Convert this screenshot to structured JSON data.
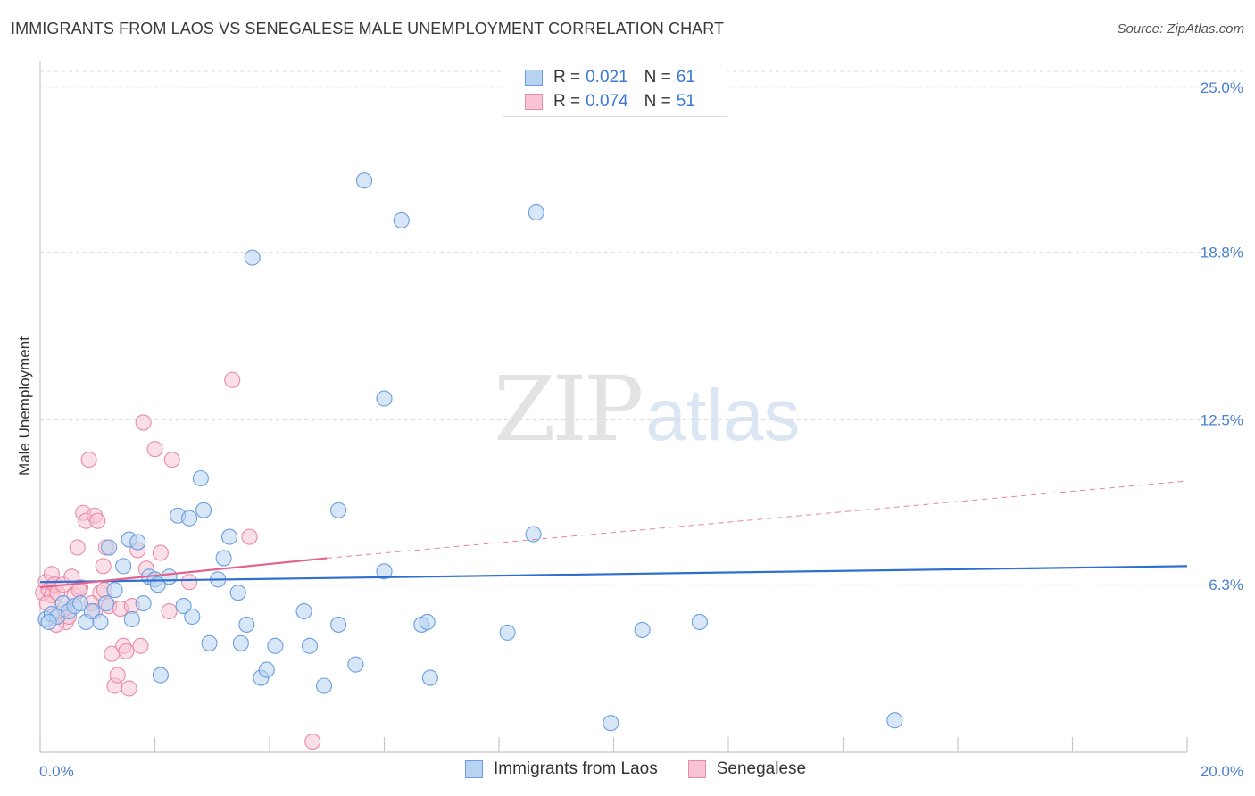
{
  "title": "IMMIGRANTS FROM LAOS VS SENEGALESE MALE UNEMPLOYMENT CORRELATION CHART",
  "source": "Source: ZipAtlas.com",
  "watermark": {
    "zip": "ZIP",
    "atlas": "atlas"
  },
  "legend": {
    "rows": [
      {
        "r_label": "R =",
        "r_value": "0.021",
        "n_label": "N =",
        "n_value": "61"
      },
      {
        "r_label": "R =",
        "r_value": "0.074",
        "n_label": "N =",
        "n_value": "51"
      }
    ]
  },
  "bottom_legend": [
    "Immigrants from Laos",
    "Senegalese"
  ],
  "colors": {
    "blue_fill": "#b8d3f2",
    "blue_stroke": "#6a9ee0",
    "blue_line": "#2f6fcf",
    "pink_fill": "#f8c4d4",
    "pink_stroke": "#e98aa8",
    "pink_line": "#e2648e",
    "tick_text": "#4a7fcf",
    "grid": "#dddddd"
  },
  "chart_data": {
    "type": "scatter",
    "title": "IMMIGRANTS FROM LAOS VS SENEGALESE MALE UNEMPLOYMENT CORRELATION CHART",
    "xlabel": "",
    "ylabel": "Male Unemployment",
    "xlim": [
      0,
      20
    ],
    "ylim": [
      0,
      25.6
    ],
    "x_tick_labels": [
      "0.0%",
      "20.0%"
    ],
    "y_ticks": [
      6.3,
      12.5,
      18.8,
      25.0
    ],
    "y_tick_labels": [
      "6.3%",
      "12.5%",
      "18.8%",
      "25.0%"
    ],
    "grid": true,
    "series": [
      {
        "name": "Immigrants from Laos",
        "r": 0.021,
        "n": 61,
        "trend": {
          "x": [
            0,
            20
          ],
          "y": [
            6.4,
            7.0
          ],
          "style": "solid"
        },
        "points": [
          [
            0.1,
            5.0
          ],
          [
            0.2,
            5.2
          ],
          [
            0.3,
            5.1
          ],
          [
            0.4,
            5.6
          ],
          [
            0.5,
            5.3
          ],
          [
            0.6,
            5.5
          ],
          [
            0.7,
            5.6
          ],
          [
            0.8,
            4.9
          ],
          [
            0.9,
            5.3
          ],
          [
            1.05,
            4.9
          ],
          [
            1.15,
            5.6
          ],
          [
            1.2,
            7.7
          ],
          [
            1.3,
            6.1
          ],
          [
            1.45,
            7.0
          ],
          [
            1.55,
            8.0
          ],
          [
            1.6,
            5.0
          ],
          [
            1.7,
            7.9
          ],
          [
            1.8,
            5.6
          ],
          [
            1.9,
            6.6
          ],
          [
            2.0,
            6.5
          ],
          [
            2.05,
            6.3
          ],
          [
            2.1,
            2.9
          ],
          [
            2.25,
            6.6
          ],
          [
            2.4,
            8.9
          ],
          [
            2.5,
            5.5
          ],
          [
            2.6,
            8.8
          ],
          [
            2.65,
            5.1
          ],
          [
            2.8,
            10.3
          ],
          [
            2.85,
            9.1
          ],
          [
            2.95,
            4.1
          ],
          [
            3.1,
            6.5
          ],
          [
            3.2,
            7.3
          ],
          [
            3.3,
            8.1
          ],
          [
            3.45,
            6.0
          ],
          [
            3.5,
            4.1
          ],
          [
            3.6,
            4.8
          ],
          [
            3.7,
            18.6
          ],
          [
            3.85,
            2.8
          ],
          [
            3.95,
            3.1
          ],
          [
            4.1,
            4.0
          ],
          [
            4.6,
            5.3
          ],
          [
            4.7,
            4.0
          ],
          [
            4.95,
            2.5
          ],
          [
            5.2,
            4.8
          ],
          [
            5.2,
            9.1
          ],
          [
            5.5,
            3.3
          ],
          [
            5.65,
            21.5
          ],
          [
            6.0,
            6.8
          ],
          [
            6.0,
            13.3
          ],
          [
            6.3,
            20.0
          ],
          [
            6.65,
            4.8
          ],
          [
            6.75,
            4.9
          ],
          [
            6.8,
            2.8
          ],
          [
            8.15,
            4.5
          ],
          [
            8.6,
            8.2
          ],
          [
            8.65,
            20.3
          ],
          [
            9.95,
            1.1
          ],
          [
            10.5,
            4.6
          ],
          [
            11.5,
            4.9
          ],
          [
            14.9,
            1.2
          ],
          [
            0.15,
            4.9
          ]
        ]
      },
      {
        "name": "Senegalese",
        "r": 0.074,
        "n": 51,
        "trend": {
          "x": [
            0,
            5.0
          ],
          "y": [
            6.2,
            7.3
          ],
          "style": "solid",
          "dashed_extension": {
            "x": [
              5.0,
              20
            ],
            "y": [
              7.3,
              10.2
            ]
          }
        },
        "points": [
          [
            0.05,
            6.0
          ],
          [
            0.1,
            6.4
          ],
          [
            0.15,
            6.1
          ],
          [
            0.2,
            6.7
          ],
          [
            0.2,
            5.9
          ],
          [
            0.25,
            6.3
          ],
          [
            0.3,
            6.0
          ],
          [
            0.35,
            5.2
          ],
          [
            0.4,
            6.3
          ],
          [
            0.45,
            4.9
          ],
          [
            0.5,
            5.1
          ],
          [
            0.55,
            6.6
          ],
          [
            0.6,
            5.9
          ],
          [
            0.65,
            7.7
          ],
          [
            0.7,
            6.2
          ],
          [
            0.75,
            9.0
          ],
          [
            0.8,
            8.7
          ],
          [
            0.85,
            11.0
          ],
          [
            0.9,
            5.6
          ],
          [
            0.95,
            8.9
          ],
          [
            1.0,
            8.7
          ],
          [
            1.05,
            6.0
          ],
          [
            1.1,
            7.0
          ],
          [
            1.15,
            7.7
          ],
          [
            1.2,
            5.5
          ],
          [
            1.25,
            3.7
          ],
          [
            1.3,
            2.5
          ],
          [
            1.35,
            2.9
          ],
          [
            1.4,
            5.4
          ],
          [
            1.45,
            4.0
          ],
          [
            1.5,
            3.8
          ],
          [
            1.55,
            2.4
          ],
          [
            1.6,
            5.5
          ],
          [
            1.7,
            7.6
          ],
          [
            1.75,
            4.0
          ],
          [
            1.8,
            12.4
          ],
          [
            1.85,
            6.9
          ],
          [
            2.0,
            11.4
          ],
          [
            2.1,
            7.5
          ],
          [
            2.25,
            5.3
          ],
          [
            2.3,
            11.0
          ],
          [
            2.6,
            6.4
          ],
          [
            3.35,
            14.0
          ],
          [
            3.65,
            8.1
          ],
          [
            4.75,
            0.4
          ],
          [
            0.12,
            5.6
          ],
          [
            0.28,
            4.8
          ],
          [
            0.42,
            5.4
          ],
          [
            0.68,
            6.1
          ],
          [
            0.95,
            5.3
          ],
          [
            1.12,
            6.1
          ]
        ]
      }
    ]
  }
}
